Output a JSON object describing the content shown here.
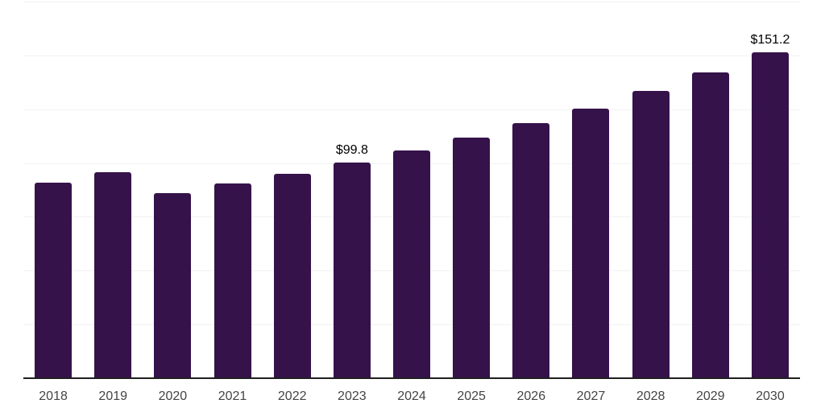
{
  "chart_data": {
    "type": "bar",
    "title": "",
    "categories": [
      "2018",
      "2019",
      "2020",
      "2021",
      "2022",
      "2023",
      "2024",
      "2025",
      "2026",
      "2027",
      "2028",
      "2029",
      "2030"
    ],
    "values": [
      90.6,
      95.2,
      85.7,
      90.0,
      94.5,
      99.8,
      105.3,
      111.4,
      118.2,
      124.9,
      133.1,
      141.6,
      151.2
    ],
    "data_labels": {
      "2023": "$99.8",
      "2030": "$151.2"
    },
    "xlabel": "",
    "ylabel": "",
    "ylim": [
      0,
      175
    ],
    "gridline_step": 25,
    "grid": "horizontal",
    "y_axis_labels_visible": false,
    "legend": "none"
  },
  "colors": {
    "bar": "#35124A",
    "gridline": "#f2f2f2",
    "axis_line": "#1f1f1f",
    "tick_label": "#444444",
    "data_label": "#000000",
    "background": "#ffffff"
  }
}
